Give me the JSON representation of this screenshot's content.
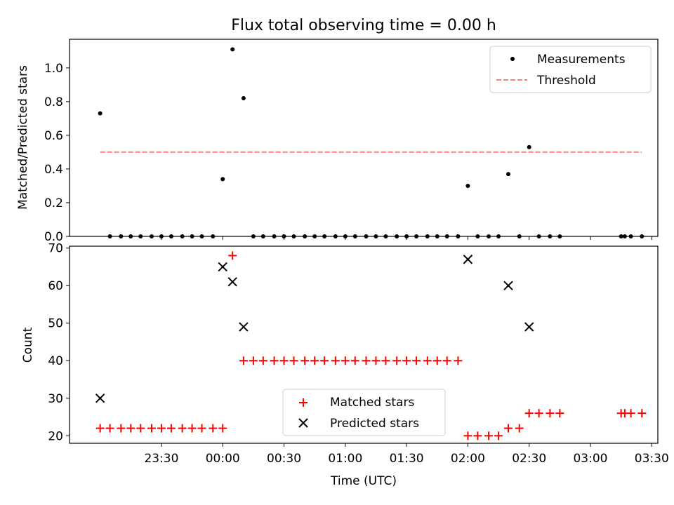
{
  "chart_data": [
    {
      "type": "scatter",
      "title": "Flux total observing time = 0.00 h",
      "xlabel": "",
      "ylabel": "Matched/Predicted stars",
      "ylim": [
        0,
        1.17
      ],
      "yticks": [
        "0.0",
        "0.2",
        "0.4",
        "0.6",
        "0.8",
        "1.0"
      ],
      "x_range_hours": [
        -0.75,
        4.05
      ],
      "legend": {
        "placement": "top-right",
        "entries": [
          "Measurements",
          "Threshold"
        ]
      },
      "series": [
        {
          "name": "Measurements",
          "marker": "dot",
          "color": "#000000",
          "points": [
            [
              -0.5,
              0.73
            ],
            [
              -0.42,
              0.0
            ],
            [
              -0.33,
              0.0
            ],
            [
              -0.25,
              0.0
            ],
            [
              -0.17,
              0.0
            ],
            [
              -0.08,
              0.0
            ],
            [
              0.0,
              0.0
            ],
            [
              0.08,
              0.0
            ],
            [
              0.17,
              0.0
            ],
            [
              0.25,
              0.0
            ],
            [
              0.33,
              0.0
            ],
            [
              0.42,
              0.0
            ],
            [
              0.5,
              0.34
            ],
            [
              0.58,
              1.11
            ],
            [
              0.67,
              0.82
            ],
            [
              0.75,
              0.0
            ],
            [
              0.83,
              0.0
            ],
            [
              0.92,
              0.0
            ],
            [
              1.0,
              0.0
            ],
            [
              1.08,
              0.0
            ],
            [
              1.17,
              0.0
            ],
            [
              1.25,
              0.0
            ],
            [
              1.33,
              0.0
            ],
            [
              1.42,
              0.0
            ],
            [
              1.5,
              0.0
            ],
            [
              1.58,
              0.0
            ],
            [
              1.67,
              0.0
            ],
            [
              1.75,
              0.0
            ],
            [
              1.83,
              0.0
            ],
            [
              1.92,
              0.0
            ],
            [
              2.0,
              0.0
            ],
            [
              2.08,
              0.0
            ],
            [
              2.17,
              0.0
            ],
            [
              2.25,
              0.0
            ],
            [
              2.33,
              0.0
            ],
            [
              2.42,
              0.0
            ],
            [
              2.5,
              0.3
            ],
            [
              2.58,
              0.0
            ],
            [
              2.67,
              0.0
            ],
            [
              2.75,
              0.0
            ],
            [
              2.83,
              0.37
            ],
            [
              2.92,
              0.0
            ],
            [
              3.0,
              0.53
            ],
            [
              3.08,
              0.0
            ],
            [
              3.17,
              0.0
            ],
            [
              3.25,
              0.0
            ],
            [
              3.75,
              0.0
            ],
            [
              3.78,
              0.0
            ],
            [
              3.83,
              0.0
            ],
            [
              3.92,
              0.0
            ]
          ]
        },
        {
          "name": "Threshold",
          "style": "dashed",
          "color": "#ff7f7f",
          "y": 0.5,
          "x_span": [
            -0.5,
            3.92
          ]
        }
      ]
    },
    {
      "type": "scatter",
      "title": "",
      "xlabel": "Time (UTC)",
      "ylabel": "Count",
      "ylim": [
        18,
        70.5
      ],
      "yticks": [
        "20",
        "30",
        "40",
        "50",
        "60",
        "70"
      ],
      "x_range_hours": [
        -0.75,
        4.05
      ],
      "xticks": [
        {
          "hours": 0.0,
          "label": "23:30"
        },
        {
          "hours": 0.5,
          "label": "00:00"
        },
        {
          "hours": 1.0,
          "label": "00:30"
        },
        {
          "hours": 1.5,
          "label": "01:00"
        },
        {
          "hours": 2.0,
          "label": "01:30"
        },
        {
          "hours": 2.5,
          "label": "02:00"
        },
        {
          "hours": 3.0,
          "label": "02:30"
        },
        {
          "hours": 3.5,
          "label": "03:00"
        },
        {
          "hours": 4.0,
          "label": "03:30"
        }
      ],
      "legend": {
        "placement": "lower-center",
        "entries": [
          "Matched stars",
          "Predicted stars"
        ]
      },
      "series": [
        {
          "name": "Matched stars",
          "marker": "plus",
          "color": "#ff0000",
          "points": [
            [
              -0.5,
              22
            ],
            [
              -0.42,
              22
            ],
            [
              -0.33,
              22
            ],
            [
              -0.25,
              22
            ],
            [
              -0.17,
              22
            ],
            [
              -0.08,
              22
            ],
            [
              0.0,
              22
            ],
            [
              0.08,
              22
            ],
            [
              0.17,
              22
            ],
            [
              0.25,
              22
            ],
            [
              0.33,
              22
            ],
            [
              0.42,
              22
            ],
            [
              0.5,
              22
            ],
            [
              0.58,
              68
            ],
            [
              0.67,
              40
            ],
            [
              0.75,
              40
            ],
            [
              0.83,
              40
            ],
            [
              0.92,
              40
            ],
            [
              1.0,
              40
            ],
            [
              1.08,
              40
            ],
            [
              1.17,
              40
            ],
            [
              1.25,
              40
            ],
            [
              1.33,
              40
            ],
            [
              1.42,
              40
            ],
            [
              1.5,
              40
            ],
            [
              1.58,
              40
            ],
            [
              1.67,
              40
            ],
            [
              1.75,
              40
            ],
            [
              1.83,
              40
            ],
            [
              1.92,
              40
            ],
            [
              2.0,
              40
            ],
            [
              2.08,
              40
            ],
            [
              2.17,
              40
            ],
            [
              2.25,
              40
            ],
            [
              2.33,
              40
            ],
            [
              2.42,
              40
            ],
            [
              2.5,
              20
            ],
            [
              2.58,
              20
            ],
            [
              2.67,
              20
            ],
            [
              2.75,
              20
            ],
            [
              2.83,
              22
            ],
            [
              2.92,
              22
            ],
            [
              3.0,
              26
            ],
            [
              3.08,
              26
            ],
            [
              3.17,
              26
            ],
            [
              3.25,
              26
            ],
            [
              3.75,
              26
            ],
            [
              3.78,
              26
            ],
            [
              3.83,
              26
            ],
            [
              3.92,
              26
            ]
          ]
        },
        {
          "name": "Predicted stars",
          "marker": "x",
          "color": "#000000",
          "points": [
            [
              -0.5,
              30
            ],
            [
              0.5,
              65
            ],
            [
              0.58,
              61
            ],
            [
              0.67,
              49
            ],
            [
              2.5,
              67
            ],
            [
              2.83,
              60
            ],
            [
              3.0,
              49
            ]
          ]
        }
      ]
    }
  ]
}
